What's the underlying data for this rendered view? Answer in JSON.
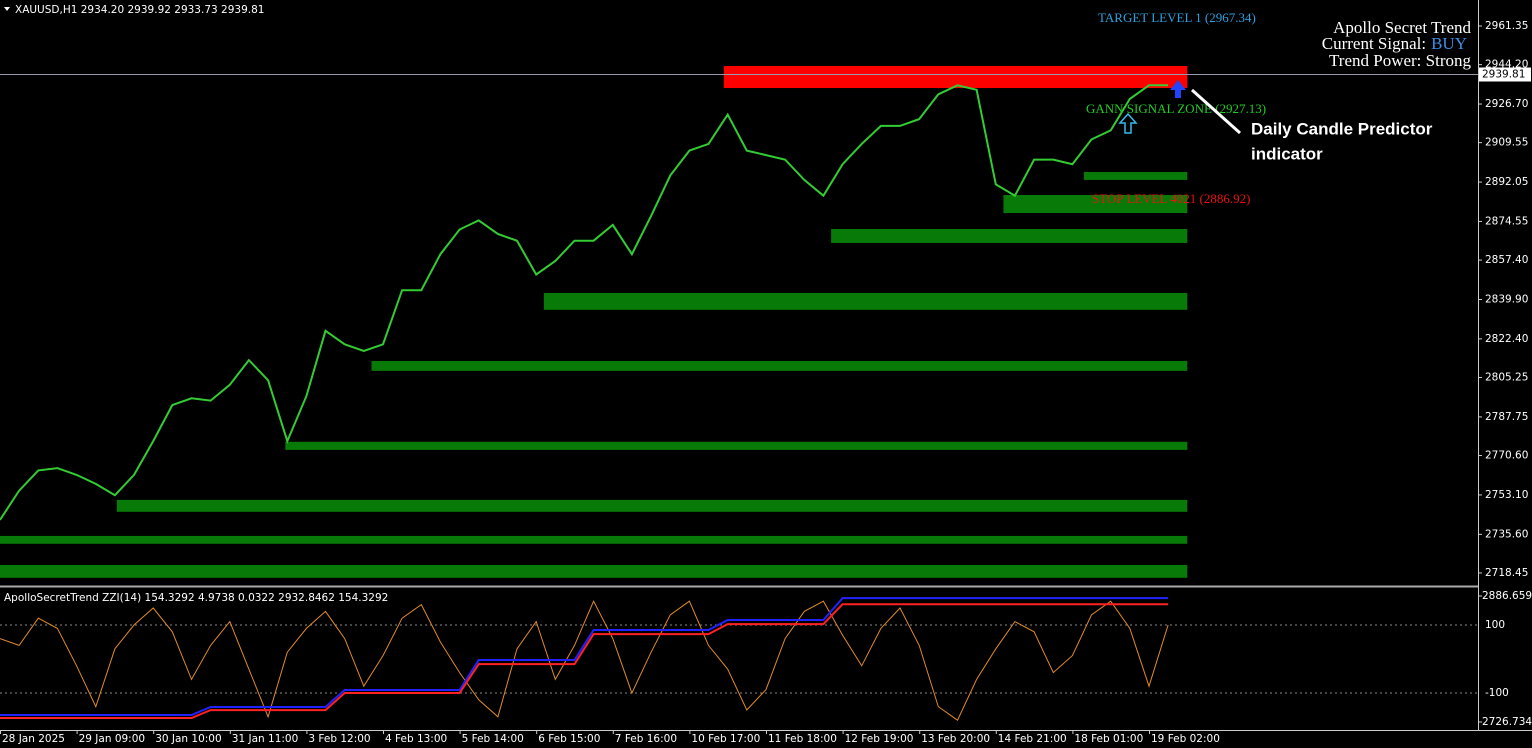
{
  "header": "XAUUSD,H1  2934.20 2939.92 2933.73 2939.81",
  "chart_data": [
    {
      "type": "line",
      "categories": [
        "28 Jan 2025",
        null,
        null,
        null,
        "29 Jan 09:00",
        null,
        null,
        null,
        "30 Jan 10:00",
        null,
        null,
        null,
        "31 Jan 11:00",
        null,
        null,
        null,
        "3 Feb 12:00",
        null,
        null,
        null,
        "4 Feb 13:00",
        null,
        null,
        null,
        "5 Feb 14:00",
        null,
        null,
        null,
        "6 Feb 15:00",
        null,
        null,
        null,
        "7 Feb 16:00",
        null,
        null,
        null,
        "10 Feb 17:00",
        null,
        null,
        null,
        "11 Feb 18:00",
        null,
        null,
        null,
        "12 Feb 19:00",
        null,
        null,
        null,
        "13 Feb 20:00",
        null,
        null,
        null,
        "14 Feb 21:00",
        null,
        null,
        null,
        "18 Feb 01:00",
        null,
        null,
        null,
        "19 Feb 02:00",
        null
      ],
      "values": [
        2742,
        2755,
        2764,
        2765,
        2762,
        2758,
        2753,
        2762,
        2777,
        2793,
        2796,
        2795,
        2802,
        2813,
        2804,
        2777,
        2797,
        2826,
        2820,
        2817,
        2820,
        2844,
        2844,
        2860,
        2871,
        2875,
        2869,
        2866,
        2851,
        2857,
        2866,
        2866,
        2873,
        2860,
        2877,
        2895,
        2906,
        2909,
        2922,
        2906,
        2904,
        2902,
        2893,
        2886,
        2900,
        2909,
        2917,
        2917,
        2920,
        2931,
        2935,
        2933,
        2891,
        2886,
        2902,
        2902,
        2900,
        2911,
        2915,
        2929,
        2935,
        2935
      ],
      "color": "#33cc33",
      "ylim": [
        2713.1,
        2972.9
      ],
      "yticks": [
        2961.35,
        {
          "value": 2944.2,
          "label": "2944.20"
        },
        {
          "value": 2926.7,
          "label": "2926.70"
        },
        {
          "value": 2909.55,
          "label": "2909.55"
        },
        {
          "value": 2892.05,
          "label": "2892.05"
        },
        {
          "value": 2874.55,
          "label": "2874.55"
        },
        {
          "value": 2857.4,
          "label": "2857.40"
        },
        {
          "value": 2839.9,
          "label": "2839.90"
        },
        {
          "value": 2822.4,
          "label": "2822.40"
        },
        {
          "value": 2805.25,
          "label": "2805.25"
        },
        {
          "value": 2787.75,
          "label": "2787.75"
        },
        {
          "value": 2770.6,
          "label": "2770.60"
        },
        {
          "value": 2753.1,
          "label": "2753.10"
        },
        {
          "value": 2735.6,
          "label": "2735.60"
        },
        {
          "value": 2718.45,
          "label": "2718.45"
        }
      ],
      "price_line": 2939.81,
      "zones": [
        {
          "low": 2933.8,
          "high": 2943.6,
          "start": 37.8,
          "end": 62,
          "color": "#ff0000"
        },
        {
          "low": 2893,
          "high": 2896.5,
          "start": 56.6,
          "end": 62,
          "color": "#087a08"
        },
        {
          "low": 2878.3,
          "high": 2886.3,
          "start": 52.4,
          "end": 62,
          "color": "#087a08"
        },
        {
          "low": 2865,
          "high": 2871.2,
          "start": 43.4,
          "end": 62,
          "color": "#087a08"
        },
        {
          "low": 2835.3,
          "high": 2842.8,
          "start": 28.4,
          "end": 62,
          "color": "#087a08"
        },
        {
          "low": 2808.2,
          "high": 2812.6,
          "start": 19.4,
          "end": 62,
          "color": "#087a08"
        },
        {
          "low": 2773.1,
          "high": 2776.7,
          "start": 14.9,
          "end": 62,
          "color": "#087a08"
        },
        {
          "low": 2745.6,
          "high": 2750.9,
          "start": 6.1,
          "end": 62,
          "color": "#087a08"
        },
        {
          "low": 2731.4,
          "high": 2734.9,
          "start": 0,
          "end": 62,
          "color": "#087a08"
        },
        {
          "low": 2716.3,
          "high": 2722,
          "start": 0,
          "end": 62,
          "color": "#087a08"
        }
      ],
      "annotations": [
        {
          "text": "TARGET LEVEL 1 (2967.34)",
          "color": "#2aa0e0"
        },
        {
          "text": "GANN SIGNAL ZONE (2927.13)",
          "color": "#22cc22"
        },
        {
          "text": "STOP LEVEL 4021 (2886.92)",
          "color": "#ee1111"
        }
      ],
      "info": {
        "title": "Apollo Secret Trend",
        "signal_label": "Current Signal:",
        "signal": "BUY",
        "signal_color": "#3a8fe8",
        "power": "Trend Power: Strong"
      },
      "callout": [
        "Daily Candle Predictor",
        "indicator"
      ]
    },
    {
      "type": "line",
      "title": "ApolloSecretTrend  ZZI(14) 154.3292 4.9738 0.0322 2932.8462 154.3292",
      "ylim": [
        2726.7348,
        2886.6593
      ],
      "yticks": [
        2886.6593,
        2726.7348
      ],
      "y2lim": [
        -185.3,
        185.3
      ],
      "y2ticks": [
        100,
        -100
      ],
      "series": [
        {
          "color": "#e08a2a",
          "axis": "y2",
          "values": [
            60,
            40,
            120,
            90,
            -20,
            -140,
            30,
            100,
            150,
            80,
            -60,
            40,
            110,
            -30,
            -170,
            20,
            90,
            140,
            60,
            -80,
            10,
            120,
            160,
            50,
            -40,
            -120,
            -170,
            30,
            110,
            -60,
            40,
            170,
            60,
            -100,
            20,
            130,
            170,
            40,
            -30,
            -150,
            -90,
            60,
            140,
            170,
            70,
            -20,
            90,
            150,
            40,
            -140,
            -180,
            -60,
            30,
            110,
            80,
            -40,
            10,
            130,
            170,
            90,
            -80,
            100
          ]
        },
        {
          "color": "#2222ff",
          "values": [
            2735.6,
            2735.6,
            2735.6,
            2735.6,
            2735.6,
            2735.6,
            2735.6,
            2735.6,
            2735.6,
            2735.6,
            2735.6,
            2745.8,
            2745.8,
            2745.8,
            2745.8,
            2745.8,
            2745.8,
            2745.8,
            2767.4,
            2767.4,
            2767.4,
            2767.4,
            2767.4,
            2767.4,
            2767.4,
            2805.4,
            2805.4,
            2805.4,
            2805.4,
            2805.4,
            2805.4,
            2843.5,
            2843.5,
            2843.5,
            2843.5,
            2843.5,
            2843.5,
            2843.5,
            2856.2,
            2856.2,
            2856.2,
            2856.2,
            2856.2,
            2856.2,
            2884,
            2884,
            2884,
            2884,
            2884,
            2884,
            2884,
            2884,
            2884,
            2884,
            2884,
            2884,
            2884,
            2884,
            2884,
            2884,
            2884,
            2884
          ]
        },
        {
          "color": "#ff2222",
          "values": [
            2731.8,
            2731.8,
            2731.8,
            2731.8,
            2731.8,
            2731.8,
            2731.8,
            2731.8,
            2731.8,
            2731.8,
            2731.8,
            2741.9,
            2741.9,
            2741.9,
            2741.9,
            2741.9,
            2741.9,
            2741.9,
            2763.5,
            2763.5,
            2763.5,
            2763.5,
            2763.5,
            2763.5,
            2763.5,
            2800.2,
            2800.2,
            2800.2,
            2800.2,
            2800.2,
            2800.2,
            2838.3,
            2838.3,
            2838.3,
            2838.3,
            2838.3,
            2838.3,
            2838.3,
            2851,
            2851,
            2851,
            2851,
            2851,
            2851,
            2876.3,
            2876.3,
            2876.3,
            2876.3,
            2876.3,
            2876.3,
            2876.3,
            2876.3,
            2876.3,
            2876.3,
            2876.3,
            2876.3,
            2876.3,
            2876.3,
            2876.3,
            2876.3,
            2876.3,
            2876.3
          ]
        }
      ]
    }
  ]
}
